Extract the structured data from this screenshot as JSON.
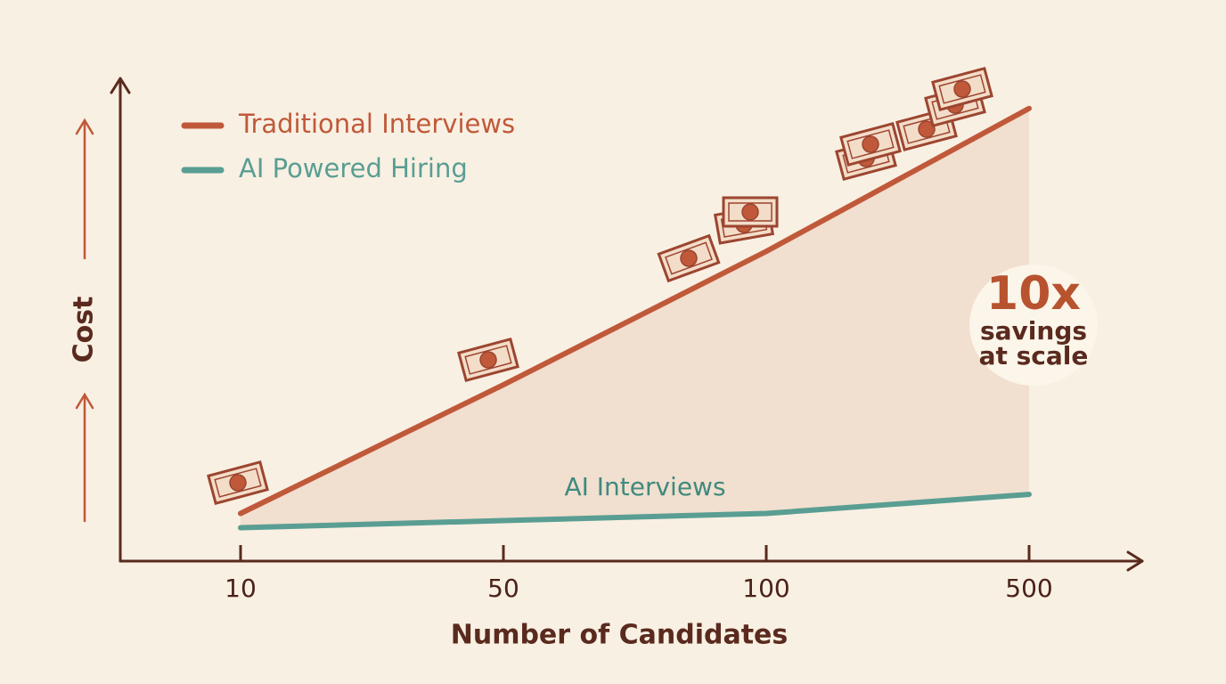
{
  "chart_data": {
    "type": "line",
    "x_label": "Number of Candidates",
    "y_label": "Cost",
    "categories": [
      "10",
      "50",
      "100",
      "500"
    ],
    "series": [
      {
        "name": "Traditional Interviews",
        "color": "#c0593a",
        "values": [
          10,
          37,
          65,
          95
        ]
      },
      {
        "name": "AI Powered Hiring",
        "color": "#5a9e93",
        "values": [
          7,
          8.5,
          10,
          14
        ]
      }
    ],
    "ylim": [
      0,
      100
    ],
    "annotations": {
      "series_label": "AI Interviews",
      "headline": "10x",
      "line1": "savings",
      "line2": "at scale"
    }
  }
}
